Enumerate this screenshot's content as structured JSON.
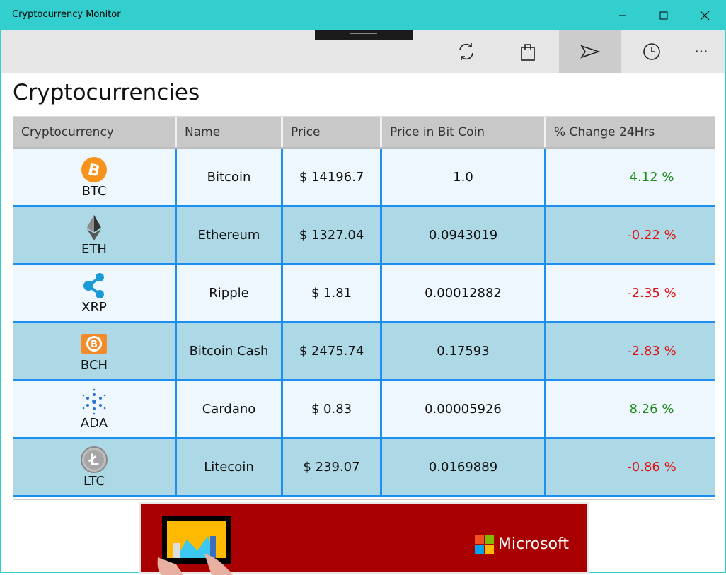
{
  "window": {
    "title": "Cryptocurrency Monitor"
  },
  "toolbar": {
    "buttons": [
      {
        "icon": "refresh-icon"
      },
      {
        "icon": "shopping-bag-icon"
      },
      {
        "icon": "send-icon",
        "selected": true
      },
      {
        "icon": "clock-icon"
      },
      {
        "icon": "more-icon",
        "label": "···"
      }
    ]
  },
  "page": {
    "title": "Cryptocurrencies"
  },
  "table": {
    "columns": [
      "Cryptocurrency",
      "Name",
      "Price",
      "Price in Bit Coin",
      "% Change 24Hrs"
    ],
    "rows": [
      {
        "symbol": "BTC",
        "name": "Bitcoin",
        "price": "$ 14196.7",
        "btc": "1.0",
        "change": "4.12 %",
        "trend": "up"
      },
      {
        "symbol": "ETH",
        "name": "Ethereum",
        "price": "$ 1327.04",
        "btc": "0.0943019",
        "change": "-0.22 %",
        "trend": "down"
      },
      {
        "symbol": "XRP",
        "name": "Ripple",
        "price": "$ 1.81",
        "btc": "0.00012882",
        "change": "-2.35 %",
        "trend": "down"
      },
      {
        "symbol": "BCH",
        "name": "Bitcoin Cash",
        "price": "$ 2475.74",
        "btc": "0.17593",
        "change": "-2.83 %",
        "trend": "down"
      },
      {
        "symbol": "ADA",
        "name": "Cardano",
        "price": "$ 0.83",
        "btc": "0.00005926",
        "change": "8.26 %",
        "trend": "up"
      },
      {
        "symbol": "LTC",
        "name": "Litecoin",
        "price": "$ 239.07",
        "btc": "0.0169889",
        "change": "-0.86 %",
        "trend": "down"
      }
    ]
  },
  "ad": {
    "brand": "Microsoft"
  },
  "colors": {
    "titlebar": "#33cfcf",
    "row_light": "#eef7fd",
    "row_dark": "#add8e6",
    "grid_line": "#1e8ff0",
    "positive": "#1a8c1a",
    "negative": "#e01010",
    "ad_bg": "#a80000"
  }
}
